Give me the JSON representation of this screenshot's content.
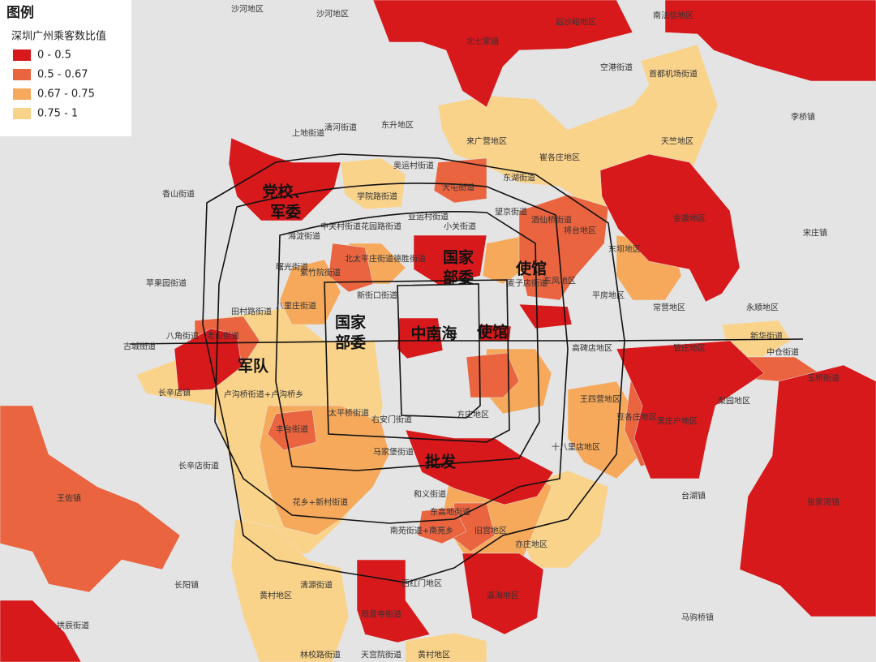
{
  "legend": {
    "heading": "图例",
    "title": "深圳广州乘客数比值",
    "items": [
      {
        "label": "0 - 0.5",
        "color": "#d7191c"
      },
      {
        "label": "0.5 - 0.67",
        "color": "#e9643f"
      },
      {
        "label": "0.67 - 0.75",
        "color": "#f6a95b"
      },
      {
        "label": "0.75 - 1",
        "color": "#fad38b"
      }
    ]
  },
  "annotations": [
    {
      "lines": [
        "党校、",
        "军委"
      ]
    },
    {
      "lines": [
        "国家",
        "部委"
      ]
    },
    {
      "lines": [
        "使馆"
      ]
    },
    {
      "lines": [
        "国家",
        "部委"
      ]
    },
    {
      "lines": [
        "中南海"
      ]
    },
    {
      "lines": [
        "使馆"
      ]
    },
    {
      "lines": [
        "军队"
      ]
    },
    {
      "lines": [
        "批发"
      ]
    }
  ],
  "places": [
    "沙河地区",
    "沙河地区",
    "北七家镇",
    "后沙峪地区",
    "南法信地区",
    "空港街道",
    "首都机场街道",
    "李桥镇",
    "天竺地区",
    "东升地区",
    "清河街道",
    "上地街道",
    "来广营地区",
    "崔各庄地区",
    "奥运村街道",
    "大屯街道",
    "香山街道",
    "学院路街道",
    "望京街道",
    "东湖街道",
    "金盏地区",
    "宋庄镇",
    "中关村街道",
    "花园路街道",
    "海淀街道",
    "亚运村街道",
    "小关街道",
    "将台地区",
    "酒仙桥街道",
    "东坝地区",
    "曙光街道",
    "紫竹院街道",
    "北太平庄街道",
    "德胜街道",
    "平房地区",
    "苹果园街道",
    "八里庄街道",
    "田村路街道",
    "新街口街道",
    "常营地区",
    "永顺地区",
    "八角街道",
    "老山街道",
    "古城街道",
    "高碑店地区",
    "管庄地区",
    "新华街道",
    "中仓街道",
    "长辛店镇",
    "卢沟桥街道+卢沟桥乡",
    "王四营地区",
    "豆各庄地区",
    "黑庄户地区",
    "梨园地区",
    "玉桥街道",
    "太平桥街道",
    "右安门街道",
    "方庄地区",
    "丰台街道",
    "十八里店地区",
    "马家堡街道",
    "长辛店街道",
    "王佐镇",
    "花乡+新村街道",
    "和义街道",
    "东高地街道",
    "台湖镇",
    "张家湾镇",
    "南苑街道+南苑乡",
    "旧宫地区",
    "亦庄地区",
    "长阳镇",
    "清源街道",
    "黄村地区",
    "西红门地区",
    "瀛海地区",
    "观音寺街道",
    "拱辰街道",
    "马驹桥镇",
    "林校路街道",
    "天宫院街道",
    "黄村地区",
    "东风地区",
    "麦子店街道"
  ]
}
